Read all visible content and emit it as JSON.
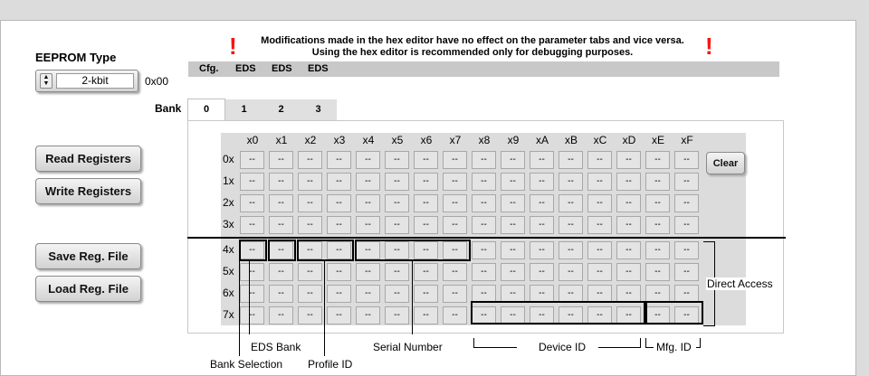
{
  "eeprom": {
    "label": "EEPROM Type",
    "value": "2-kbit",
    "address": "0x00"
  },
  "notice": {
    "line1": "Modifications made in the hex editor have no effect on the parameter tabs and vice versa.",
    "line2": "Using the hex editor is recommended only for debugging purposes.",
    "mark": "!"
  },
  "strip": [
    "Cfg.",
    "EDS",
    "EDS",
    "EDS"
  ],
  "bank": {
    "label": "Bank",
    "tabs": [
      "0",
      "1",
      "2",
      "3"
    ],
    "active": "0"
  },
  "buttons": {
    "read": "Read Registers",
    "write": "Write Registers",
    "save": "Save Reg. File",
    "load": "Load Reg. File",
    "clear": "Clear"
  },
  "grid": {
    "columns": [
      "x0",
      "x1",
      "x2",
      "x3",
      "x4",
      "x5",
      "x6",
      "x7",
      "x8",
      "x9",
      "xA",
      "xB",
      "xC",
      "xD",
      "xE",
      "xF"
    ],
    "rows": [
      "0x",
      "1x",
      "2x",
      "3x",
      "4x",
      "5x",
      "6x",
      "7x"
    ],
    "placeholder": "--"
  },
  "annotations": {
    "direct_access": "Direct Access",
    "eds_bank": "EDS Bank",
    "bank_selection": "Bank Selection",
    "profile_id": "Profile ID",
    "serial_number": "Serial Number",
    "device_id": "Device ID",
    "mfg_id": "Mfg. ID"
  }
}
